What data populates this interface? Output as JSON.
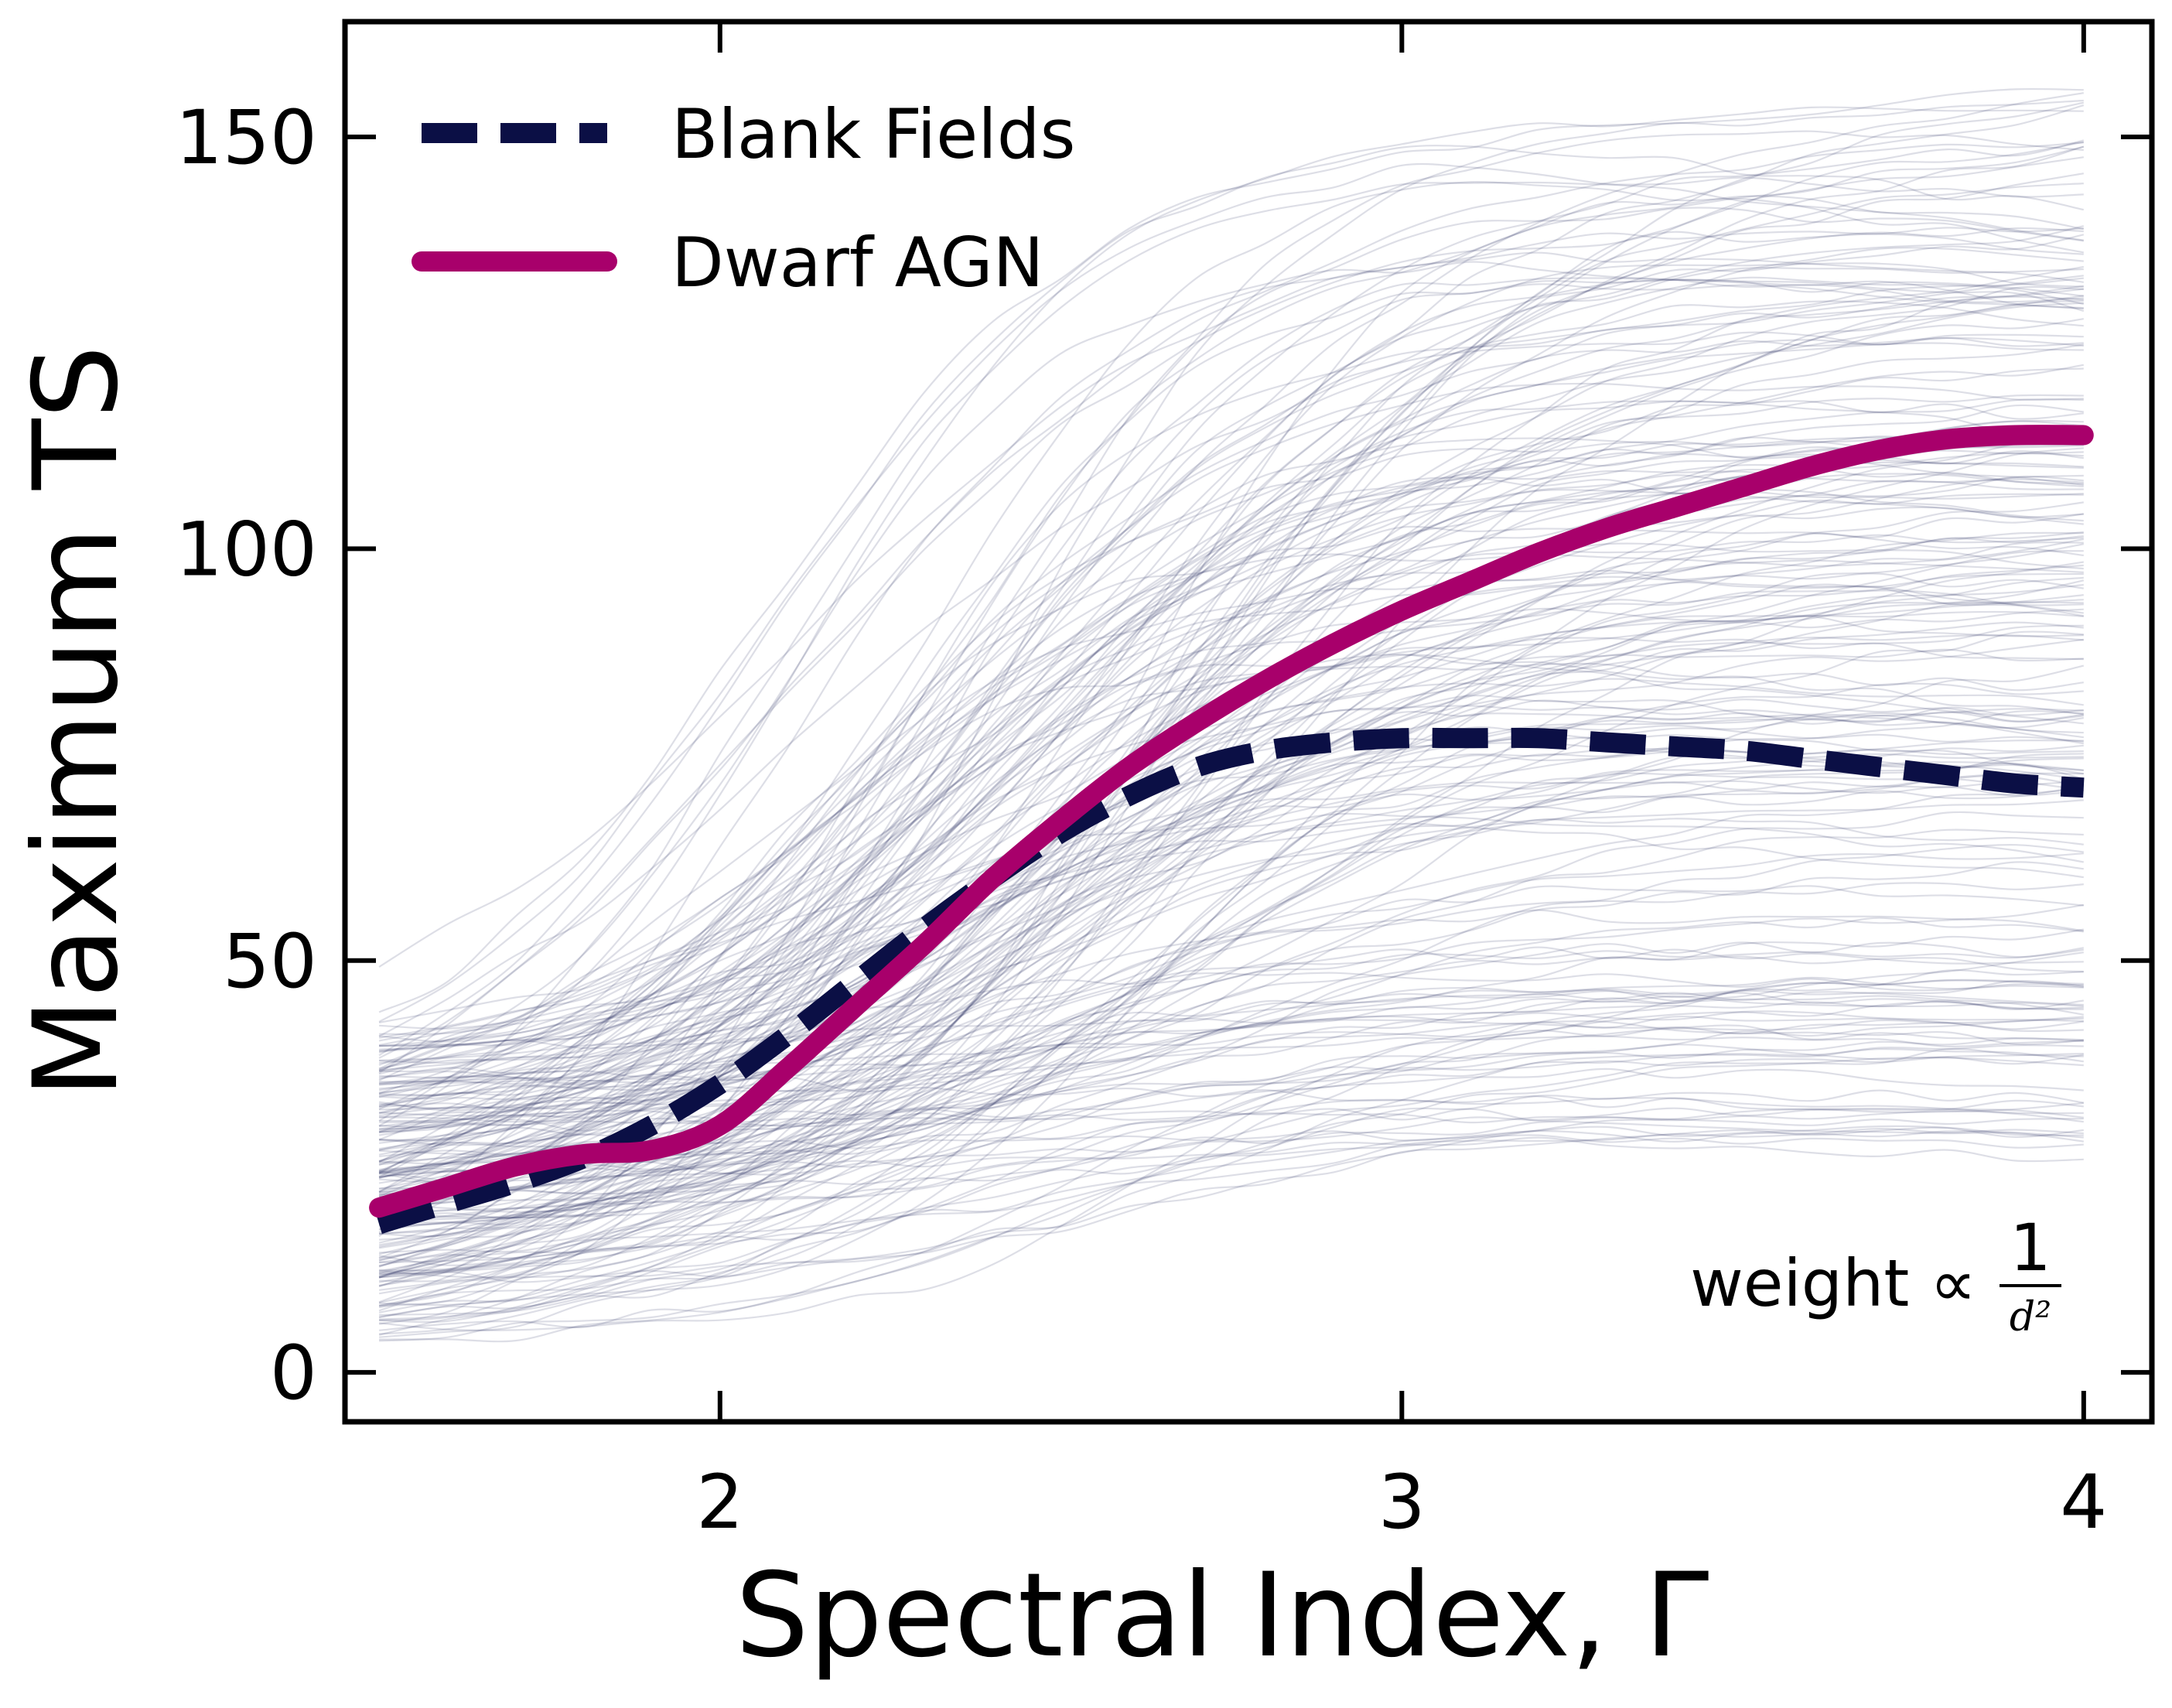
{
  "chart_data": {
    "type": "line",
    "xlabel": "Spectral Index, Γ",
    "ylabel": "Maximum TS",
    "xlim": [
      1.45,
      4.1
    ],
    "ylim": [
      -6,
      164
    ],
    "xticks": [
      2,
      3,
      4
    ],
    "xtick_labels": [
      "2",
      "3",
      "4"
    ],
    "yticks": [
      0,
      50,
      100,
      150
    ],
    "ytick_labels": [
      "0",
      "50",
      "100",
      "150"
    ],
    "grid": false,
    "legend_position": "top-left",
    "legend": [
      "Blank Fields",
      "Dwarf AGN"
    ],
    "annotation": {
      "prefix": "weight ∝",
      "numerator": "1",
      "denominator": "d²"
    },
    "x": [
      1.5,
      1.6,
      1.7,
      1.8,
      1.9,
      2.0,
      2.1,
      2.2,
      2.3,
      2.4,
      2.5,
      2.6,
      2.7,
      2.8,
      2.9,
      3.0,
      3.1,
      3.2,
      3.3,
      3.4,
      3.5,
      3.6,
      3.7,
      3.8,
      3.9,
      4.0
    ],
    "series": [
      {
        "name": "Blank Fields",
        "color": "#0b0f45",
        "style": "dashed",
        "values": [
          18,
          20.5,
          23,
          26,
          30,
          35,
          41,
          47.5,
          54,
          60,
          65.5,
          70,
          73.5,
          75.5,
          76.5,
          77,
          77,
          77,
          76.5,
          76,
          75.5,
          74.5,
          73.5,
          72.5,
          71.5,
          71
        ]
      },
      {
        "name": "Dwarf AGN",
        "color": "#a8006b",
        "style": "solid",
        "values": [
          20,
          22.5,
          25,
          26.5,
          27,
          30,
          37,
          44.5,
          52,
          60,
          67,
          73.5,
          79,
          84,
          88.5,
          92.5,
          96,
          99.5,
          102.5,
          105,
          107.5,
          110,
          112,
          113.3,
          113.8,
          113.8
        ]
      }
    ],
    "background_curves": {
      "description_count": 220,
      "color": "#2e2f66"
    }
  }
}
